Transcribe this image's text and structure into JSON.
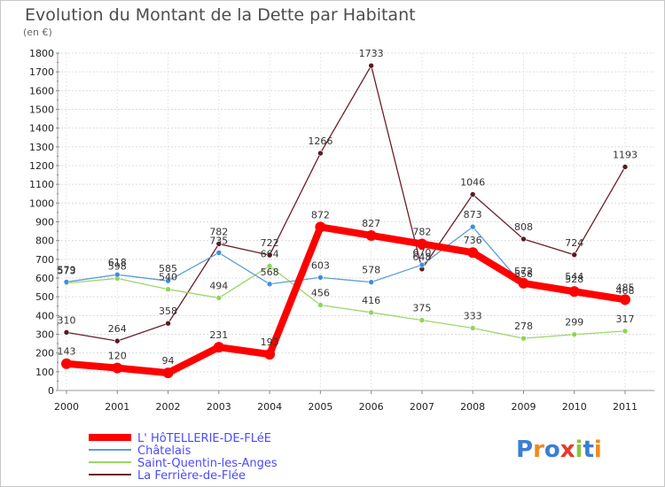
{
  "chart_data": {
    "type": "line",
    "title": "Evolution du Montant de la Dette par Habitant",
    "subtitle": "(en €)",
    "x": [
      "2000",
      "2001",
      "2002",
      "2003",
      "2004",
      "2005",
      "2006",
      "2007",
      "2008",
      "2009",
      "2010",
      "2011"
    ],
    "ylim": [
      0,
      1800
    ],
    "yticks": [
      0,
      100,
      200,
      300,
      400,
      500,
      600,
      700,
      800,
      900,
      1000,
      1100,
      1200,
      1300,
      1400,
      1500,
      1600,
      1700,
      1800
    ],
    "grid": true,
    "legend_position": "bottom-left",
    "series": [
      {
        "name": "La Ferrière-de-Flée",
        "color": "#6b1f2a",
        "marker": "#5a1a22",
        "values": [
          310,
          264,
          358,
          782,
          722,
          1266,
          1733,
          648,
          1046,
          808,
          724,
          1193
        ]
      },
      {
        "name": "Saint-Quentin-les-Anges",
        "color": "#9ad86a",
        "marker": "#8fd45a",
        "values": [
          573,
          598,
          540,
          494,
          664,
          456,
          416,
          375,
          333,
          278,
          299,
          317
        ]
      },
      {
        "name": "Châtelais",
        "color": "#5c9ed6",
        "marker": "#3d8ee0",
        "values": [
          579,
          618,
          585,
          735,
          568,
          603,
          578,
          670,
          873,
          558,
          544,
          468
        ]
      },
      {
        "name": "L' HôTELLERIE-DE-FLéE",
        "color": "#ff0000",
        "marker": "#ff0000",
        "values": [
          143,
          120,
          94,
          231,
          193,
          872,
          827,
          782,
          736,
          572,
          528,
          485
        ]
      }
    ]
  },
  "brand": {
    "text": "Proxiti"
  }
}
